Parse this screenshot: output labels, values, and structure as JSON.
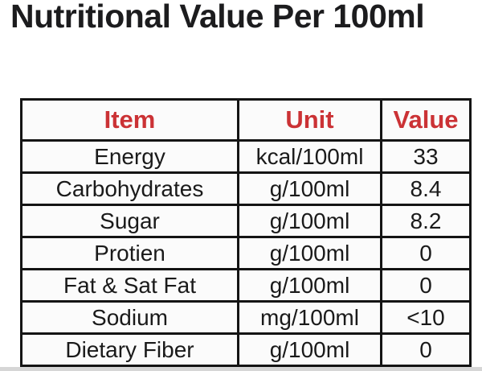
{
  "page": {
    "title": "Nutritional Value Per 100ml"
  },
  "colors": {
    "title_color": "#1c1c1e",
    "header_red": "#cb3235",
    "border_color": "#141414",
    "cell_text": "#1a1a1a",
    "cell_bg": "#fbfbfb",
    "page_bg": "#ffffff",
    "bottom_strip": "#d6d6d6"
  },
  "table": {
    "headers": [
      "Item",
      "Unit",
      "Value"
    ],
    "column_keys": [
      "item",
      "unit",
      "value"
    ],
    "rows": [
      {
        "item": "Energy",
        "unit": "kcal/100ml",
        "value": "33"
      },
      {
        "item": "Carbohydrates",
        "unit": "g/100ml",
        "value": "8.4"
      },
      {
        "item": "Sugar",
        "unit": "g/100ml",
        "value": "8.2"
      },
      {
        "item": "Protien",
        "unit": "g/100ml",
        "value": "0"
      },
      {
        "item": "Fat & Sat Fat",
        "unit": "g/100ml",
        "value": "0"
      },
      {
        "item": "Sodium",
        "unit": "mg/100ml",
        "value": "<10"
      },
      {
        "item": "Dietary Fiber",
        "unit": "g/100ml",
        "value": "0"
      }
    ]
  }
}
